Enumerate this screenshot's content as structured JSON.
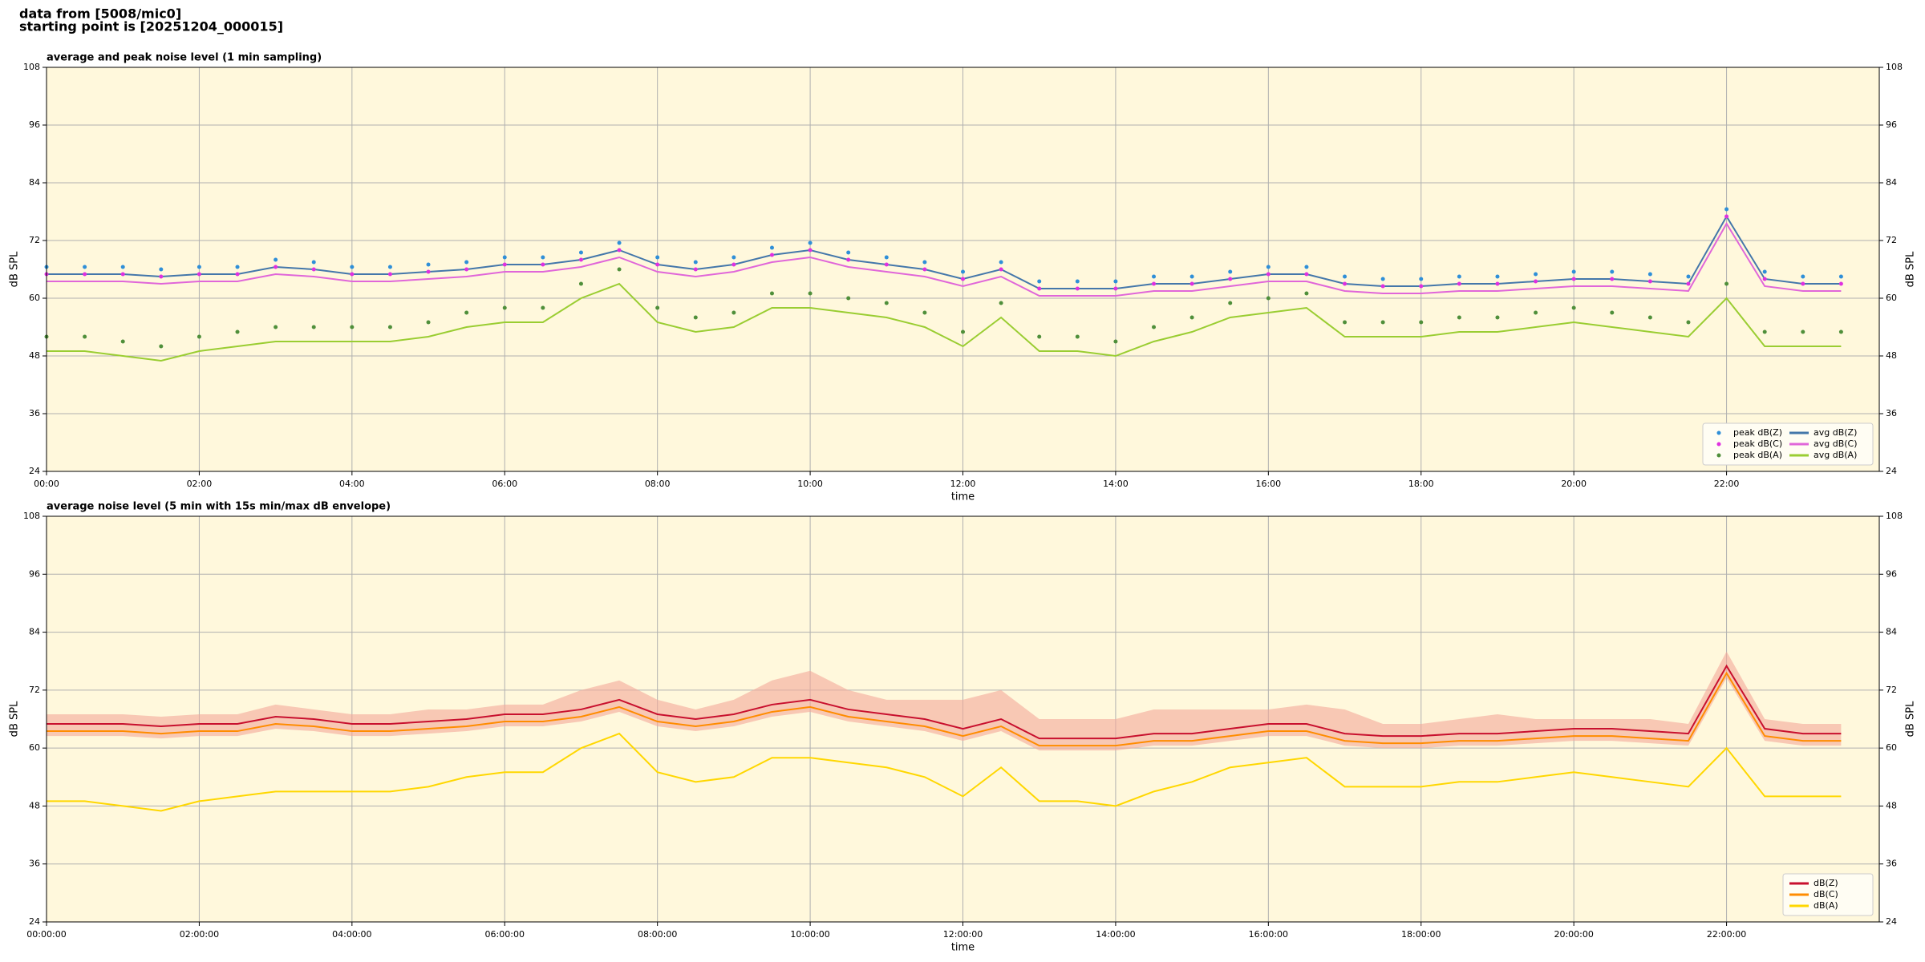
{
  "header": {
    "source": "data from [5008/mic0]",
    "start": "starting point is [20251204_000015]"
  },
  "chart_data": [
    {
      "type": "line",
      "title": "average and peak noise level (1 min sampling)",
      "xlabel": "time",
      "ylabel": "dB SPL",
      "xlim": [
        0,
        24
      ],
      "ylim": [
        24,
        108
      ],
      "yticks": [
        24,
        36,
        48,
        60,
        72,
        84,
        96,
        108
      ],
      "xticks": [
        {
          "value": 0,
          "label": "00:00"
        },
        {
          "value": 2,
          "label": "02:00"
        },
        {
          "value": 4,
          "label": "04:00"
        },
        {
          "value": 6,
          "label": "06:00"
        },
        {
          "value": 8,
          "label": "08:00"
        },
        {
          "value": 10,
          "label": "10:00"
        },
        {
          "value": 12,
          "label": "12:00"
        },
        {
          "value": 14,
          "label": "14:00"
        },
        {
          "value": 16,
          "label": "16:00"
        },
        {
          "value": 18,
          "label": "18:00"
        },
        {
          "value": 20,
          "label": "20:00"
        },
        {
          "value": 22,
          "label": "22:00"
        }
      ],
      "grid": true,
      "legend": "lower right",
      "legend_columns": 2,
      "background": "#fff8dc",
      "x": [
        0,
        0.5,
        1,
        1.5,
        2,
        2.5,
        3,
        3.5,
        4,
        4.5,
        5,
        5.5,
        6,
        6.5,
        7,
        7.5,
        8,
        8.5,
        9,
        9.5,
        10,
        10.5,
        11,
        11.5,
        12,
        12.5,
        13,
        13.5,
        14,
        14.5,
        15,
        15.5,
        16,
        16.5,
        17,
        17.5,
        18,
        18.5,
        19,
        19.5,
        20,
        20.5,
        21,
        21.5,
        22,
        22.5,
        23,
        23.5
      ],
      "series": [
        {
          "name": "peak dB(Z)",
          "color": "#2f8fd8",
          "style": "points",
          "values": [
            66.5,
            66.5,
            66.5,
            66,
            66.5,
            66.5,
            68,
            67.5,
            66.5,
            66.5,
            67,
            67.5,
            68.5,
            68.5,
            69.5,
            71.5,
            68.5,
            67.5,
            68.5,
            70.5,
            71.5,
            69.5,
            68.5,
            67.5,
            65.5,
            67.5,
            63.5,
            63.5,
            63.5,
            64.5,
            64.5,
            65.5,
            66.5,
            66.5,
            64.5,
            64,
            64,
            64.5,
            64.5,
            65,
            65.5,
            65.5,
            65,
            64.5,
            78.5,
            65.5,
            64.5,
            64.5
          ]
        },
        {
          "name": "peak dB(C)",
          "color": "#e030e0",
          "style": "points",
          "values": [
            65,
            65,
            65,
            64.5,
            65,
            65,
            66.5,
            66,
            65,
            65,
            65.5,
            66,
            67,
            67,
            68,
            70,
            67,
            66,
            67,
            69,
            70,
            68,
            67,
            66,
            64,
            66,
            62,
            62,
            62,
            63,
            63,
            64,
            65,
            65,
            63,
            62.5,
            62.5,
            63,
            63,
            63.5,
            64,
            64,
            63.5,
            63,
            77,
            64,
            63,
            63
          ]
        },
        {
          "name": "peak dB(A)",
          "color": "#4f8f3a",
          "style": "points",
          "values": [
            52,
            52,
            51,
            50,
            52,
            53,
            54,
            54,
            54,
            54,
            55,
            57,
            58,
            58,
            63,
            66,
            58,
            56,
            57,
            61,
            61,
            60,
            59,
            57,
            53,
            59,
            52,
            52,
            51,
            54,
            56,
            59,
            60,
            61,
            55,
            55,
            55,
            56,
            56,
            57,
            58,
            57,
            56,
            55,
            63,
            53,
            53,
            53
          ]
        },
        {
          "name": "avg dB(Z)",
          "color": "#4477aa",
          "style": "line",
          "values": [
            65,
            65,
            65,
            64.5,
            65,
            65,
            66.5,
            66,
            65,
            65,
            65.5,
            66,
            67,
            67,
            68,
            70,
            67,
            66,
            67,
            69,
            70,
            68,
            67,
            66,
            64,
            66,
            62,
            62,
            62,
            63,
            63,
            64,
            65,
            65,
            63,
            62.5,
            62.5,
            63,
            63,
            63.5,
            64,
            64,
            63.5,
            63,
            77,
            64,
            63,
            63
          ]
        },
        {
          "name": "avg dB(C)",
          "color": "#e066d9",
          "style": "line",
          "values": [
            63.5,
            63.5,
            63.5,
            63,
            63.5,
            63.5,
            65,
            64.5,
            63.5,
            63.5,
            64,
            64.5,
            65.5,
            65.5,
            66.5,
            68.5,
            65.5,
            64.5,
            65.5,
            67.5,
            68.5,
            66.5,
            65.5,
            64.5,
            62.5,
            64.5,
            60.5,
            60.5,
            60.5,
            61.5,
            61.5,
            62.5,
            63.5,
            63.5,
            61.5,
            61,
            61,
            61.5,
            61.5,
            62,
            62.5,
            62.5,
            62,
            61.5,
            75.5,
            62.5,
            61.5,
            61.5
          ]
        },
        {
          "name": "avg dB(A)",
          "color": "#9acd32",
          "style": "line",
          "values": [
            49,
            49,
            48,
            47,
            49,
            50,
            51,
            51,
            51,
            51,
            52,
            54,
            55,
            55,
            60,
            63,
            55,
            53,
            54,
            58,
            58,
            57,
            56,
            54,
            50,
            56,
            49,
            49,
            48,
            51,
            53,
            56,
            57,
            58,
            52,
            52,
            52,
            53,
            53,
            54,
            55,
            54,
            53,
            52,
            60,
            50,
            50,
            50
          ]
        }
      ]
    },
    {
      "type": "line",
      "title": "average noise level (5 min with 15s min/max dB envelope)",
      "xlabel": "time",
      "ylabel": "dB SPL",
      "xlim": [
        0,
        24
      ],
      "ylim": [
        24,
        108
      ],
      "yticks": [
        24,
        36,
        48,
        60,
        72,
        84,
        96,
        108
      ],
      "xticks": [
        {
          "value": 0,
          "label": "00:00:00"
        },
        {
          "value": 2,
          "label": "02:00:00"
        },
        {
          "value": 4,
          "label": "04:00:00"
        },
        {
          "value": 6,
          "label": "06:00:00"
        },
        {
          "value": 8,
          "label": "08:00:00"
        },
        {
          "value": 10,
          "label": "10:00:00"
        },
        {
          "value": 12,
          "label": "12:00:00"
        },
        {
          "value": 14,
          "label": "14:00:00"
        },
        {
          "value": 16,
          "label": "16:00:00"
        },
        {
          "value": 18,
          "label": "18:00:00"
        },
        {
          "value": 20,
          "label": "20:00:00"
        },
        {
          "value": 22,
          "label": "22:00:00"
        }
      ],
      "grid": true,
      "legend": "lower right",
      "legend_columns": 1,
      "background": "#fff8dc",
      "x": [
        0,
        0.5,
        1,
        1.5,
        2,
        2.5,
        3,
        3.5,
        4,
        4.5,
        5,
        5.5,
        6,
        6.5,
        7,
        7.5,
        8,
        8.5,
        9,
        9.5,
        10,
        10.5,
        11,
        11.5,
        12,
        12.5,
        13,
        13.5,
        14,
        14.5,
        15,
        15.5,
        16,
        16.5,
        17,
        17.5,
        18,
        18.5,
        19,
        19.5,
        20,
        20.5,
        21,
        21.5,
        22,
        22.5,
        23,
        23.5
      ],
      "envelope": {
        "color": "#f4a89a",
        "lower": [
          62.5,
          62.5,
          62.5,
          62,
          62.5,
          62.5,
          64,
          63.5,
          62.5,
          62.5,
          63,
          63.5,
          64.5,
          64.5,
          65.5,
          67.5,
          64.5,
          63.5,
          64.5,
          66.5,
          67.5,
          65.5,
          64.5,
          63.5,
          61.5,
          63.5,
          59.5,
          59.5,
          59.5,
          60.5,
          60.5,
          61.5,
          62.5,
          62.5,
          60.5,
          60,
          60,
          60.5,
          60.5,
          61,
          61.5,
          61.5,
          61,
          60.5,
          74.5,
          61.5,
          60.5,
          60.5
        ],
        "upper": [
          67,
          67,
          67,
          66.5,
          67,
          67,
          69,
          68,
          67,
          67,
          68,
          68,
          69,
          69,
          72,
          74,
          70,
          68,
          70,
          74,
          76,
          72,
          70,
          70,
          70,
          72,
          66,
          66,
          66,
          68,
          68,
          68,
          68,
          69,
          68,
          65,
          65,
          66,
          67,
          66,
          66,
          66,
          66,
          65,
          80,
          66,
          65,
          65
        ]
      },
      "series": [
        {
          "name": "dB(Z)",
          "color": "#c8102e",
          "style": "line",
          "values": [
            65,
            65,
            65,
            64.5,
            65,
            65,
            66.5,
            66,
            65,
            65,
            65.5,
            66,
            67,
            67,
            68,
            70,
            67,
            66,
            67,
            69,
            70,
            68,
            67,
            66,
            64,
            66,
            62,
            62,
            62,
            63,
            63,
            64,
            65,
            65,
            63,
            62.5,
            62.5,
            63,
            63,
            63.5,
            64,
            64,
            63.5,
            63,
            77,
            64,
            63,
            63
          ]
        },
        {
          "name": "dB(C)",
          "color": "#ff8c00",
          "style": "line",
          "values": [
            63.5,
            63.5,
            63.5,
            63,
            63.5,
            63.5,
            65,
            64.5,
            63.5,
            63.5,
            64,
            64.5,
            65.5,
            65.5,
            66.5,
            68.5,
            65.5,
            64.5,
            65.5,
            67.5,
            68.5,
            66.5,
            65.5,
            64.5,
            62.5,
            64.5,
            60.5,
            60.5,
            60.5,
            61.5,
            61.5,
            62.5,
            63.5,
            63.5,
            61.5,
            61,
            61,
            61.5,
            61.5,
            62,
            62.5,
            62.5,
            62,
            61.5,
            75.5,
            62.5,
            61.5,
            61.5
          ]
        },
        {
          "name": "dB(A)",
          "color": "#ffd700",
          "style": "line",
          "values": [
            49,
            49,
            48,
            47,
            49,
            50,
            51,
            51,
            51,
            51,
            52,
            54,
            55,
            55,
            60,
            63,
            55,
            53,
            54,
            58,
            58,
            57,
            56,
            54,
            50,
            56,
            49,
            49,
            48,
            51,
            53,
            56,
            57,
            58,
            52,
            52,
            52,
            53,
            53,
            54,
            55,
            54,
            53,
            52,
            60,
            50,
            50,
            50
          ]
        }
      ]
    }
  ]
}
